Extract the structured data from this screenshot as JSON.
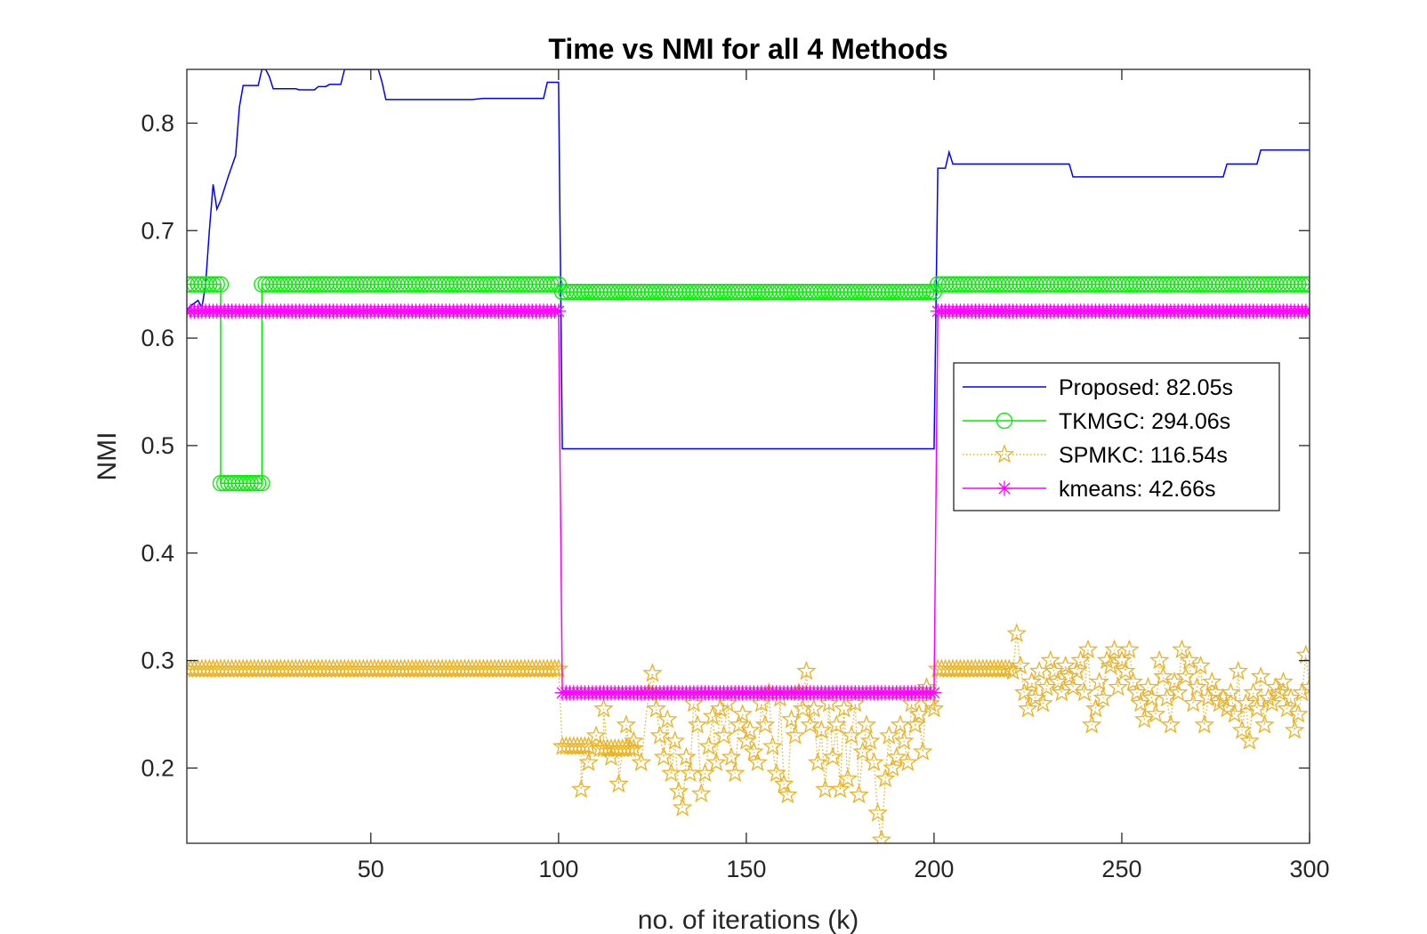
{
  "chart_data": {
    "type": "line",
    "title": "Time vs NMI for all 4 Methods",
    "xlabel": "no. of iterations (k)",
    "ylabel": "NMI",
    "xlim": [
      1,
      300
    ],
    "ylim": [
      0.13,
      0.85
    ],
    "xticks": [
      50,
      100,
      150,
      200,
      250,
      300
    ],
    "yticks": [
      0.2,
      0.3,
      0.4,
      0.5,
      0.6,
      0.7,
      0.8
    ],
    "grid": false,
    "legend_position": "right-middle",
    "series": [
      {
        "name": "Proposed: 82.05s",
        "color": "#0000ff",
        "marker": "none",
        "line_style": "solid",
        "points": [
          [
            1,
            0.625
          ],
          [
            2,
            0.63
          ],
          [
            4,
            0.635
          ],
          [
            5,
            0.628
          ],
          [
            6,
            0.65
          ],
          [
            7,
            0.7
          ],
          [
            8,
            0.743
          ],
          [
            9,
            0.72
          ],
          [
            10,
            0.728
          ],
          [
            12,
            0.75
          ],
          [
            13,
            0.76
          ],
          [
            14,
            0.77
          ],
          [
            15,
            0.815
          ],
          [
            16,
            0.835
          ],
          [
            20,
            0.835
          ],
          [
            21,
            0.85
          ],
          [
            22,
            0.85
          ],
          [
            23,
            0.843
          ],
          [
            24,
            0.832
          ],
          [
            30,
            0.832
          ],
          [
            31,
            0.831
          ],
          [
            35,
            0.831
          ],
          [
            36,
            0.834
          ],
          [
            38,
            0.834
          ],
          [
            39,
            0.836
          ],
          [
            42,
            0.836
          ],
          [
            43,
            0.85
          ],
          [
            52,
            0.85
          ],
          [
            53,
            0.838
          ],
          [
            54,
            0.822
          ],
          [
            76,
            0.822
          ],
          [
            77,
            0.822
          ],
          [
            80,
            0.823
          ],
          [
            96,
            0.823
          ],
          [
            97,
            0.838
          ],
          [
            100,
            0.838
          ],
          [
            101,
            0.497
          ],
          [
            200,
            0.497
          ],
          [
            201,
            0.758
          ],
          [
            203,
            0.758
          ],
          [
            204,
            0.773
          ],
          [
            205,
            0.762
          ],
          [
            236,
            0.762
          ],
          [
            237,
            0.75
          ],
          [
            277,
            0.75
          ],
          [
            278,
            0.762
          ],
          [
            286,
            0.762
          ],
          [
            287,
            0.775
          ],
          [
            300,
            0.775
          ]
        ]
      },
      {
        "name": "TKMGC: 294.06s",
        "color": "#00ee00",
        "marker": "circle",
        "line_style": "solid",
        "segments": [
          {
            "x_start": 1,
            "x_end": 10,
            "y": 0.65
          },
          {
            "x_start": 10,
            "x_end": 21,
            "y": 0.465
          },
          {
            "x_start": 21,
            "x_end": 100,
            "y": 0.65
          },
          {
            "x_start": 101,
            "x_end": 200,
            "y": 0.643
          },
          {
            "x_start": 201,
            "x_end": 300,
            "y": 0.65
          }
        ]
      },
      {
        "name": "SPMKC: 116.54s",
        "color": "#edb120",
        "marker": "star",
        "line_style": "dotted",
        "segments": [
          {
            "x_start": 1,
            "x_end": 100,
            "y": 0.292
          },
          {
            "x_start": 101,
            "x_end": 108,
            "y": 0.22
          },
          {
            "x_start": 111,
            "x_end": 120,
            "y": 0.218
          },
          {
            "x_start": 201,
            "x_end": 220,
            "y": 0.292
          }
        ],
        "points": [
          [
            106,
            0.18
          ],
          [
            108,
            0.205
          ],
          [
            110,
            0.23
          ],
          [
            112,
            0.255
          ],
          [
            114,
            0.21
          ],
          [
            116,
            0.185
          ],
          [
            118,
            0.24
          ],
          [
            120,
            0.225
          ],
          [
            122,
            0.205
          ],
          [
            124,
            0.27
          ],
          [
            125,
            0.288
          ],
          [
            126,
            0.255
          ],
          [
            127,
            0.23
          ],
          [
            128,
            0.21
          ],
          [
            129,
            0.245
          ],
          [
            130,
            0.195
          ],
          [
            131,
            0.225
          ],
          [
            132,
            0.178
          ],
          [
            133,
            0.163
          ],
          [
            134,
            0.21
          ],
          [
            135,
            0.195
          ],
          [
            136,
            0.26
          ],
          [
            137,
            0.24
          ],
          [
            138,
            0.176
          ],
          [
            139,
            0.195
          ],
          [
            140,
            0.22
          ],
          [
            141,
            0.248
          ],
          [
            142,
            0.205
          ],
          [
            143,
            0.255
          ],
          [
            144,
            0.23
          ],
          [
            145,
            0.26
          ],
          [
            146,
            0.21
          ],
          [
            147,
            0.195
          ],
          [
            148,
            0.24
          ],
          [
            149,
            0.25
          ],
          [
            150,
            0.225
          ],
          [
            151,
            0.235
          ],
          [
            152,
            0.215
          ],
          [
            153,
            0.205
          ],
          [
            154,
            0.26
          ],
          [
            155,
            0.24
          ],
          [
            156,
            0.27
          ],
          [
            157,
            0.22
          ],
          [
            158,
            0.195
          ],
          [
            159,
            0.265
          ],
          [
            160,
            0.185
          ],
          [
            161,
            0.175
          ],
          [
            162,
            0.245
          ],
          [
            163,
            0.23
          ],
          [
            164,
            0.27
          ],
          [
            165,
            0.255
          ],
          [
            166,
            0.29
          ],
          [
            167,
            0.24
          ],
          [
            168,
            0.255
          ],
          [
            169,
            0.205
          ],
          [
            170,
            0.235
          ],
          [
            171,
            0.18
          ],
          [
            172,
            0.26
          ],
          [
            173,
            0.21
          ],
          [
            174,
            0.24
          ],
          [
            175,
            0.18
          ],
          [
            176,
            0.255
          ],
          [
            177,
            0.19
          ],
          [
            178,
            0.23
          ],
          [
            179,
            0.26
          ],
          [
            180,
            0.175
          ],
          [
            181,
            0.215
          ],
          [
            182,
            0.24
          ],
          [
            183,
            0.225
          ],
          [
            184,
            0.205
          ],
          [
            185,
            0.158
          ],
          [
            186,
            0.133
          ],
          [
            187,
            0.19
          ],
          [
            188,
            0.23
          ],
          [
            189,
            0.2
          ],
          [
            190,
            0.21
          ],
          [
            191,
            0.24
          ],
          [
            192,
            0.225
          ],
          [
            193,
            0.205
          ],
          [
            194,
            0.26
          ],
          [
            195,
            0.24
          ],
          [
            196,
            0.25
          ],
          [
            197,
            0.215
          ],
          [
            198,
            0.275
          ],
          [
            199,
            0.26
          ],
          [
            200,
            0.255
          ],
          [
            221,
            0.29
          ],
          [
            222,
            0.325
          ],
          [
            223,
            0.295
          ],
          [
            224,
            0.27
          ],
          [
            225,
            0.255
          ],
          [
            226,
            0.28
          ],
          [
            227,
            0.265
          ],
          [
            228,
            0.29
          ],
          [
            229,
            0.26
          ],
          [
            230,
            0.275
          ],
          [
            231,
            0.3
          ],
          [
            232,
            0.29
          ],
          [
            233,
            0.28
          ],
          [
            234,
            0.27
          ],
          [
            235,
            0.295
          ],
          [
            236,
            0.285
          ],
          [
            237,
            0.275
          ],
          [
            238,
            0.29
          ],
          [
            239,
            0.3
          ],
          [
            240,
            0.27
          ],
          [
            241,
            0.31
          ],
          [
            242,
            0.24
          ],
          [
            243,
            0.255
          ],
          [
            244,
            0.28
          ],
          [
            245,
            0.265
          ],
          [
            246,
            0.3
          ],
          [
            247,
            0.295
          ],
          [
            248,
            0.31
          ],
          [
            249,
            0.275
          ],
          [
            250,
            0.3
          ],
          [
            251,
            0.29
          ],
          [
            252,
            0.31
          ],
          [
            253,
            0.28
          ],
          [
            254,
            0.27
          ],
          [
            255,
            0.26
          ],
          [
            256,
            0.245
          ],
          [
            257,
            0.275
          ],
          [
            258,
            0.265
          ],
          [
            259,
            0.25
          ],
          [
            260,
            0.3
          ],
          [
            261,
            0.285
          ],
          [
            262,
            0.265
          ],
          [
            263,
            0.24
          ],
          [
            264,
            0.28
          ],
          [
            265,
            0.27
          ],
          [
            266,
            0.31
          ],
          [
            267,
            0.285
          ],
          [
            268,
            0.3
          ],
          [
            269,
            0.26
          ],
          [
            270,
            0.275
          ],
          [
            271,
            0.295
          ],
          [
            272,
            0.24
          ],
          [
            273,
            0.265
          ],
          [
            274,
            0.28
          ],
          [
            275,
            0.27
          ],
          [
            276,
            0.26
          ],
          [
            277,
            0.265
          ],
          [
            278,
            0.255
          ],
          [
            279,
            0.27
          ],
          [
            280,
            0.25
          ],
          [
            281,
            0.29
          ],
          [
            282,
            0.235
          ],
          [
            283,
            0.26
          ],
          [
            284,
            0.225
          ],
          [
            285,
            0.27
          ],
          [
            286,
            0.255
          ],
          [
            287,
            0.285
          ],
          [
            288,
            0.24
          ],
          [
            289,
            0.265
          ],
          [
            290,
            0.26
          ],
          [
            291,
            0.275
          ],
          [
            292,
            0.27
          ],
          [
            293,
            0.28
          ],
          [
            294,
            0.255
          ],
          [
            295,
            0.265
          ],
          [
            296,
            0.235
          ],
          [
            297,
            0.25
          ],
          [
            298,
            0.27
          ],
          [
            299,
            0.305
          ],
          [
            300,
            0.275
          ]
        ]
      },
      {
        "name": "kmeans: 42.66s",
        "color": "#ff00ff",
        "marker": "asterisk",
        "line_style": "solid",
        "segments": [
          {
            "x_start": 1,
            "x_end": 100,
            "y": 0.625
          },
          {
            "x_start": 101,
            "x_end": 200,
            "y": 0.27
          },
          {
            "x_start": 201,
            "x_end": 300,
            "y": 0.625
          }
        ]
      }
    ]
  }
}
